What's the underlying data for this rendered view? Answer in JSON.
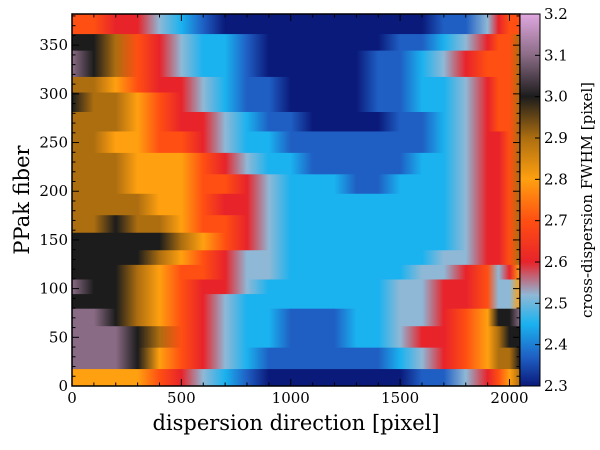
{
  "chart_data": {
    "type": "heatmap",
    "xlabel": "dispersion direction [pixel]",
    "ylabel": "PPak fiber",
    "colorbar_label": "cross-dispersion FWHM [pixel]",
    "xlim": [
      0,
      2048
    ],
    "ylim": [
      0,
      382
    ],
    "clim": [
      2.3,
      3.2
    ],
    "x_ticks": [
      "0",
      "500",
      "1000",
      "1500",
      "2000"
    ],
    "y_ticks": [
      "0",
      "50",
      "100",
      "150",
      "200",
      "250",
      "300",
      "350"
    ],
    "colorbar_ticks": [
      "2.3",
      "2.4",
      "2.5",
      "2.6",
      "2.7",
      "2.8",
      "2.9",
      "3.0",
      "3.1",
      "3.2"
    ],
    "x_samples": [
      0,
      100,
      200,
      300,
      400,
      500,
      600,
      700,
      800,
      900,
      1000,
      1100,
      1200,
      1300,
      1400,
      1500,
      1600,
      1700,
      1800,
      1900,
      1950,
      2000,
      2048
    ],
    "bands": [
      {
        "y0": 0,
        "y1": 18,
        "v": [
          2.8,
          2.8,
          2.8,
          2.8,
          2.75,
          2.65,
          2.55,
          2.45,
          2.38,
          2.33,
          2.31,
          2.3,
          2.3,
          2.3,
          2.31,
          2.33,
          2.35,
          2.4,
          2.5,
          2.62,
          2.7,
          2.8,
          2.85
        ]
      },
      {
        "y0": 18,
        "y1": 40,
        "v": [
          3.15,
          3.15,
          3.15,
          2.98,
          2.82,
          2.7,
          2.6,
          2.5,
          2.43,
          2.38,
          2.35,
          2.35,
          2.36,
          2.38,
          2.4,
          2.45,
          2.52,
          2.6,
          2.68,
          2.78,
          2.85,
          2.9,
          2.95
        ]
      },
      {
        "y0": 40,
        "y1": 62,
        "v": [
          3.15,
          3.15,
          3.12,
          2.95,
          2.85,
          2.75,
          2.65,
          2.55,
          2.47,
          2.42,
          2.4,
          2.4,
          2.4,
          2.42,
          2.45,
          2.5,
          2.58,
          2.65,
          2.7,
          2.82,
          2.9,
          2.95,
          3.0
        ]
      },
      {
        "y0": 62,
        "y1": 80,
        "v": [
          3.15,
          3.15,
          3.0,
          2.9,
          2.8,
          2.72,
          2.62,
          2.52,
          2.46,
          2.42,
          2.4,
          2.4,
          2.4,
          2.42,
          2.45,
          2.5,
          2.56,
          2.62,
          2.68,
          2.8,
          2.95,
          3.05,
          3.15
        ]
      },
      {
        "y0": 80,
        "y1": 95,
        "v": [
          3.05,
          3.05,
          2.98,
          2.88,
          2.8,
          2.72,
          2.62,
          2.55,
          2.48,
          2.44,
          2.42,
          2.42,
          2.42,
          2.44,
          2.46,
          2.5,
          2.55,
          2.6,
          2.65,
          2.75,
          2.55,
          2.5,
          2.8
        ]
      },
      {
        "y0": 95,
        "y1": 110,
        "v": [
          3.1,
          3.05,
          2.95,
          2.88,
          2.8,
          2.74,
          2.65,
          2.58,
          2.52,
          2.47,
          2.45,
          2.44,
          2.44,
          2.45,
          2.47,
          2.5,
          2.55,
          2.6,
          2.65,
          2.75,
          2.5,
          2.5,
          2.8
        ]
      },
      {
        "y0": 110,
        "y1": 125,
        "v": [
          3.0,
          3.0,
          2.95,
          2.88,
          2.82,
          2.75,
          2.68,
          2.6,
          2.55,
          2.5,
          2.47,
          2.46,
          2.45,
          2.45,
          2.46,
          2.48,
          2.52,
          2.56,
          2.62,
          2.7,
          2.55,
          2.6,
          2.8
        ]
      },
      {
        "y0": 125,
        "y1": 140,
        "v": [
          2.95,
          2.98,
          3.0,
          2.95,
          2.88,
          2.8,
          2.72,
          2.64,
          2.56,
          2.5,
          2.47,
          2.45,
          2.44,
          2.43,
          2.43,
          2.44,
          2.47,
          2.5,
          2.56,
          2.65,
          2.6,
          2.7,
          2.85
        ]
      },
      {
        "y0": 140,
        "y1": 158,
        "v": [
          2.95,
          2.98,
          3.02,
          3.0,
          2.95,
          2.88,
          2.8,
          2.7,
          2.6,
          2.53,
          2.48,
          2.45,
          2.43,
          2.42,
          2.42,
          2.43,
          2.45,
          2.48,
          2.53,
          2.62,
          2.6,
          2.7,
          2.85
        ]
      },
      {
        "y0": 158,
        "y1": 176,
        "v": [
          2.9,
          2.92,
          2.95,
          2.93,
          2.88,
          2.82,
          2.75,
          2.68,
          2.6,
          2.53,
          2.48,
          2.45,
          2.43,
          2.42,
          2.42,
          2.42,
          2.44,
          2.47,
          2.52,
          2.6,
          2.6,
          2.7,
          2.85
        ]
      },
      {
        "y0": 176,
        "y1": 198,
        "v": [
          2.9,
          2.9,
          2.88,
          2.85,
          2.82,
          2.78,
          2.73,
          2.65,
          2.58,
          2.52,
          2.48,
          2.45,
          2.43,
          2.42,
          2.42,
          2.42,
          2.43,
          2.45,
          2.5,
          2.58,
          2.62,
          2.7,
          2.85
        ]
      },
      {
        "y0": 198,
        "y1": 218,
        "v": [
          2.88,
          2.88,
          2.86,
          2.83,
          2.8,
          2.77,
          2.73,
          2.67,
          2.6,
          2.53,
          2.48,
          2.44,
          2.42,
          2.41,
          2.41,
          2.42,
          2.43,
          2.45,
          2.5,
          2.58,
          2.62,
          2.7,
          2.85
        ]
      },
      {
        "y0": 218,
        "y1": 240,
        "v": [
          2.85,
          2.85,
          2.85,
          2.83,
          2.8,
          2.76,
          2.7,
          2.62,
          2.55,
          2.48,
          2.44,
          2.41,
          2.4,
          2.4,
          2.4,
          2.41,
          2.42,
          2.45,
          2.5,
          2.6,
          2.65,
          2.72,
          2.85
        ]
      },
      {
        "y0": 240,
        "y1": 262,
        "v": [
          2.85,
          2.85,
          2.83,
          2.8,
          2.75,
          2.7,
          2.62,
          2.55,
          2.48,
          2.42,
          2.38,
          2.36,
          2.35,
          2.35,
          2.36,
          2.38,
          2.4,
          2.44,
          2.5,
          2.6,
          2.65,
          2.72,
          2.85
        ]
      },
      {
        "y0": 262,
        "y1": 282,
        "v": [
          2.92,
          2.9,
          2.85,
          2.8,
          2.72,
          2.65,
          2.57,
          2.5,
          2.43,
          2.38,
          2.35,
          2.33,
          2.32,
          2.32,
          2.33,
          2.36,
          2.4,
          2.45,
          2.5,
          2.6,
          2.67,
          2.72,
          2.85
        ]
      },
      {
        "y0": 282,
        "y1": 302,
        "v": [
          2.95,
          2.92,
          2.88,
          2.78,
          2.7,
          2.62,
          2.52,
          2.45,
          2.39,
          2.35,
          2.33,
          2.32,
          2.32,
          2.33,
          2.35,
          2.38,
          2.42,
          2.47,
          2.52,
          2.62,
          2.68,
          2.72,
          2.85
        ]
      },
      {
        "y0": 302,
        "y1": 318,
        "v": [
          2.9,
          2.9,
          2.82,
          2.72,
          2.65,
          2.57,
          2.5,
          2.44,
          2.38,
          2.34,
          2.32,
          2.31,
          2.31,
          2.32,
          2.35,
          2.38,
          2.42,
          2.47,
          2.53,
          2.62,
          2.68,
          2.72,
          2.85
        ]
      },
      {
        "y0": 318,
        "y1": 345,
        "v": [
          3.15,
          3.05,
          2.85,
          2.72,
          2.63,
          2.55,
          2.48,
          2.42,
          2.37,
          2.33,
          2.31,
          2.3,
          2.3,
          2.31,
          2.34,
          2.38,
          2.43,
          2.5,
          2.57,
          2.66,
          2.7,
          2.75,
          2.85
        ]
      },
      {
        "y0": 345,
        "y1": 362,
        "v": [
          3.05,
          3.05,
          2.85,
          2.72,
          2.62,
          2.55,
          2.48,
          2.42,
          2.37,
          2.33,
          2.31,
          2.3,
          2.3,
          2.31,
          2.33,
          2.36,
          2.4,
          2.46,
          2.52,
          2.6,
          2.66,
          2.72,
          2.85
        ]
      },
      {
        "y0": 362,
        "y1": 382,
        "v": [
          2.7,
          2.7,
          2.65,
          2.6,
          2.55,
          2.45,
          2.38,
          2.33,
          2.3,
          2.3,
          2.3,
          2.3,
          2.3,
          2.3,
          2.3,
          2.3,
          2.32,
          2.35,
          2.4,
          2.5,
          2.6,
          2.7,
          2.75
        ]
      }
    ],
    "colormap": [
      {
        "v": 2.3,
        "color": "#0a1a7a"
      },
      {
        "v": 2.37,
        "color": "#1f5fc4"
      },
      {
        "v": 2.45,
        "color": "#1ab2ef"
      },
      {
        "v": 2.52,
        "color": "#8fb8d6"
      },
      {
        "v": 2.6,
        "color": "#e8232a"
      },
      {
        "v": 2.7,
        "color": "#ff4f12"
      },
      {
        "v": 2.8,
        "color": "#ffa010"
      },
      {
        "v": 2.9,
        "color": "#ad6e10"
      },
      {
        "v": 3.0,
        "color": "#1c1c1c"
      },
      {
        "v": 3.1,
        "color": "#8a6b85"
      },
      {
        "v": 3.2,
        "color": "#e0a8e0"
      }
    ]
  }
}
